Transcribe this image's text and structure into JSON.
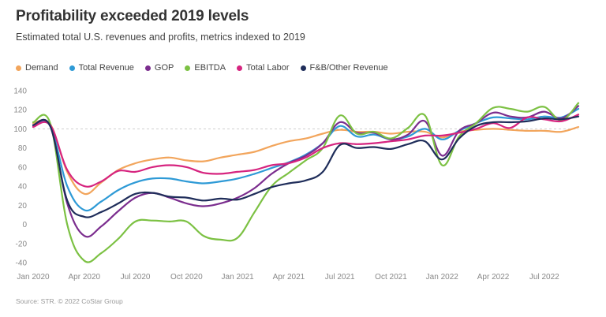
{
  "header": {
    "title": "Profitability exceeded 2019 levels",
    "subtitle": "Estimated total U.S. revenues and profits, metrics indexed to 2019"
  },
  "source": "Source: STR. © 2022 CoStar Group",
  "chart_data": {
    "type": "line",
    "title": "Profitability exceeded 2019 levels",
    "subtitle": "Estimated total U.S. revenues and profits, metrics indexed to 2019",
    "xlabel": "",
    "ylabel": "",
    "ylim": [
      -40,
      140
    ],
    "yticks": [
      -40,
      -20,
      0,
      20,
      40,
      60,
      80,
      100,
      120,
      140
    ],
    "reference_line": 100,
    "grid": false,
    "legend_position": "top-left",
    "x": [
      "Jan 2020",
      "Feb 2020",
      "Mar 2020",
      "Apr 2020",
      "May 2020",
      "Jun 2020",
      "Jul 2020",
      "Aug 2020",
      "Sep 2020",
      "Oct 2020",
      "Nov 2020",
      "Dec 2020",
      "Jan 2021",
      "Feb 2021",
      "Mar 2021",
      "Apr 2021",
      "May 2021",
      "Jun 2021",
      "Jul 2021",
      "Aug 2021",
      "Sep 2021",
      "Oct 2021",
      "Nov 2021",
      "Dec 2021",
      "Jan 2022",
      "Feb 2022",
      "Mar 2022",
      "Apr 2022",
      "May 2022",
      "Jun 2022",
      "Jul 2022",
      "Aug 2022",
      "Sep 2022"
    ],
    "x_tick_labels": [
      "Jan 2020",
      "Apr 2020",
      "Jul 2020",
      "Oct 2020",
      "Jan 2021",
      "Apr 2021",
      "Jul 2021",
      "Oct 2021",
      "Jan 2022",
      "Apr 2022",
      "Jul 2022"
    ],
    "series": [
      {
        "name": "Demand",
        "color": "#f2a55c",
        "values": [
          106,
          105,
          55,
          32,
          44,
          57,
          64,
          68,
          70,
          67,
          66,
          70,
          73,
          76,
          82,
          87,
          90,
          95,
          99,
          97,
          97,
          95,
          97,
          97,
          91,
          97,
          99,
          100,
          99,
          98,
          98,
          97,
          102
        ]
      },
      {
        "name": "Total Revenue",
        "color": "#2e9ad6",
        "values": [
          104,
          103,
          40,
          15,
          24,
          36,
          44,
          48,
          48,
          45,
          43,
          45,
          48,
          53,
          59,
          65,
          73,
          85,
          103,
          92,
          94,
          89,
          92,
          100,
          89,
          98,
          106,
          112,
          111,
          110,
          113,
          112,
          121
        ]
      },
      {
        "name": "GOP",
        "color": "#7b2d8e",
        "values": [
          103,
          103,
          22,
          -12,
          -2,
          14,
          28,
          33,
          28,
          22,
          19,
          22,
          28,
          38,
          53,
          64,
          72,
          85,
          107,
          96,
          96,
          89,
          94,
          108,
          72,
          98,
          106,
          117,
          113,
          112,
          118,
          111,
          124
        ]
      },
      {
        "name": "EBITDA",
        "color": "#7cc143",
        "values": [
          107,
          106,
          0,
          -38,
          -30,
          -15,
          3,
          4,
          3,
          3,
          -12,
          -16,
          -14,
          13,
          40,
          54,
          67,
          80,
          114,
          95,
          97,
          90,
          101,
          114,
          62,
          92,
          106,
          122,
          121,
          118,
          123,
          109,
          127
        ]
      },
      {
        "name": "Total Labor",
        "color": "#d6247f",
        "values": [
          102,
          104,
          57,
          40,
          45,
          56,
          55,
          60,
          62,
          60,
          54,
          53,
          55,
          57,
          62,
          64,
          70,
          80,
          85,
          84,
          85,
          87,
          89,
          93,
          93,
          96,
          100,
          106,
          101,
          112,
          110,
          108,
          115
        ]
      },
      {
        "name": "F&B/Other Revenue",
        "color": "#1f2d5a",
        "values": [
          104,
          103,
          25,
          8,
          13,
          22,
          32,
          33,
          29,
          28,
          25,
          27,
          26,
          32,
          39,
          43,
          46,
          55,
          83,
          80,
          81,
          79,
          84,
          87,
          68,
          90,
          103,
          107,
          107,
          108,
          111,
          110,
          113
        ]
      }
    ]
  }
}
